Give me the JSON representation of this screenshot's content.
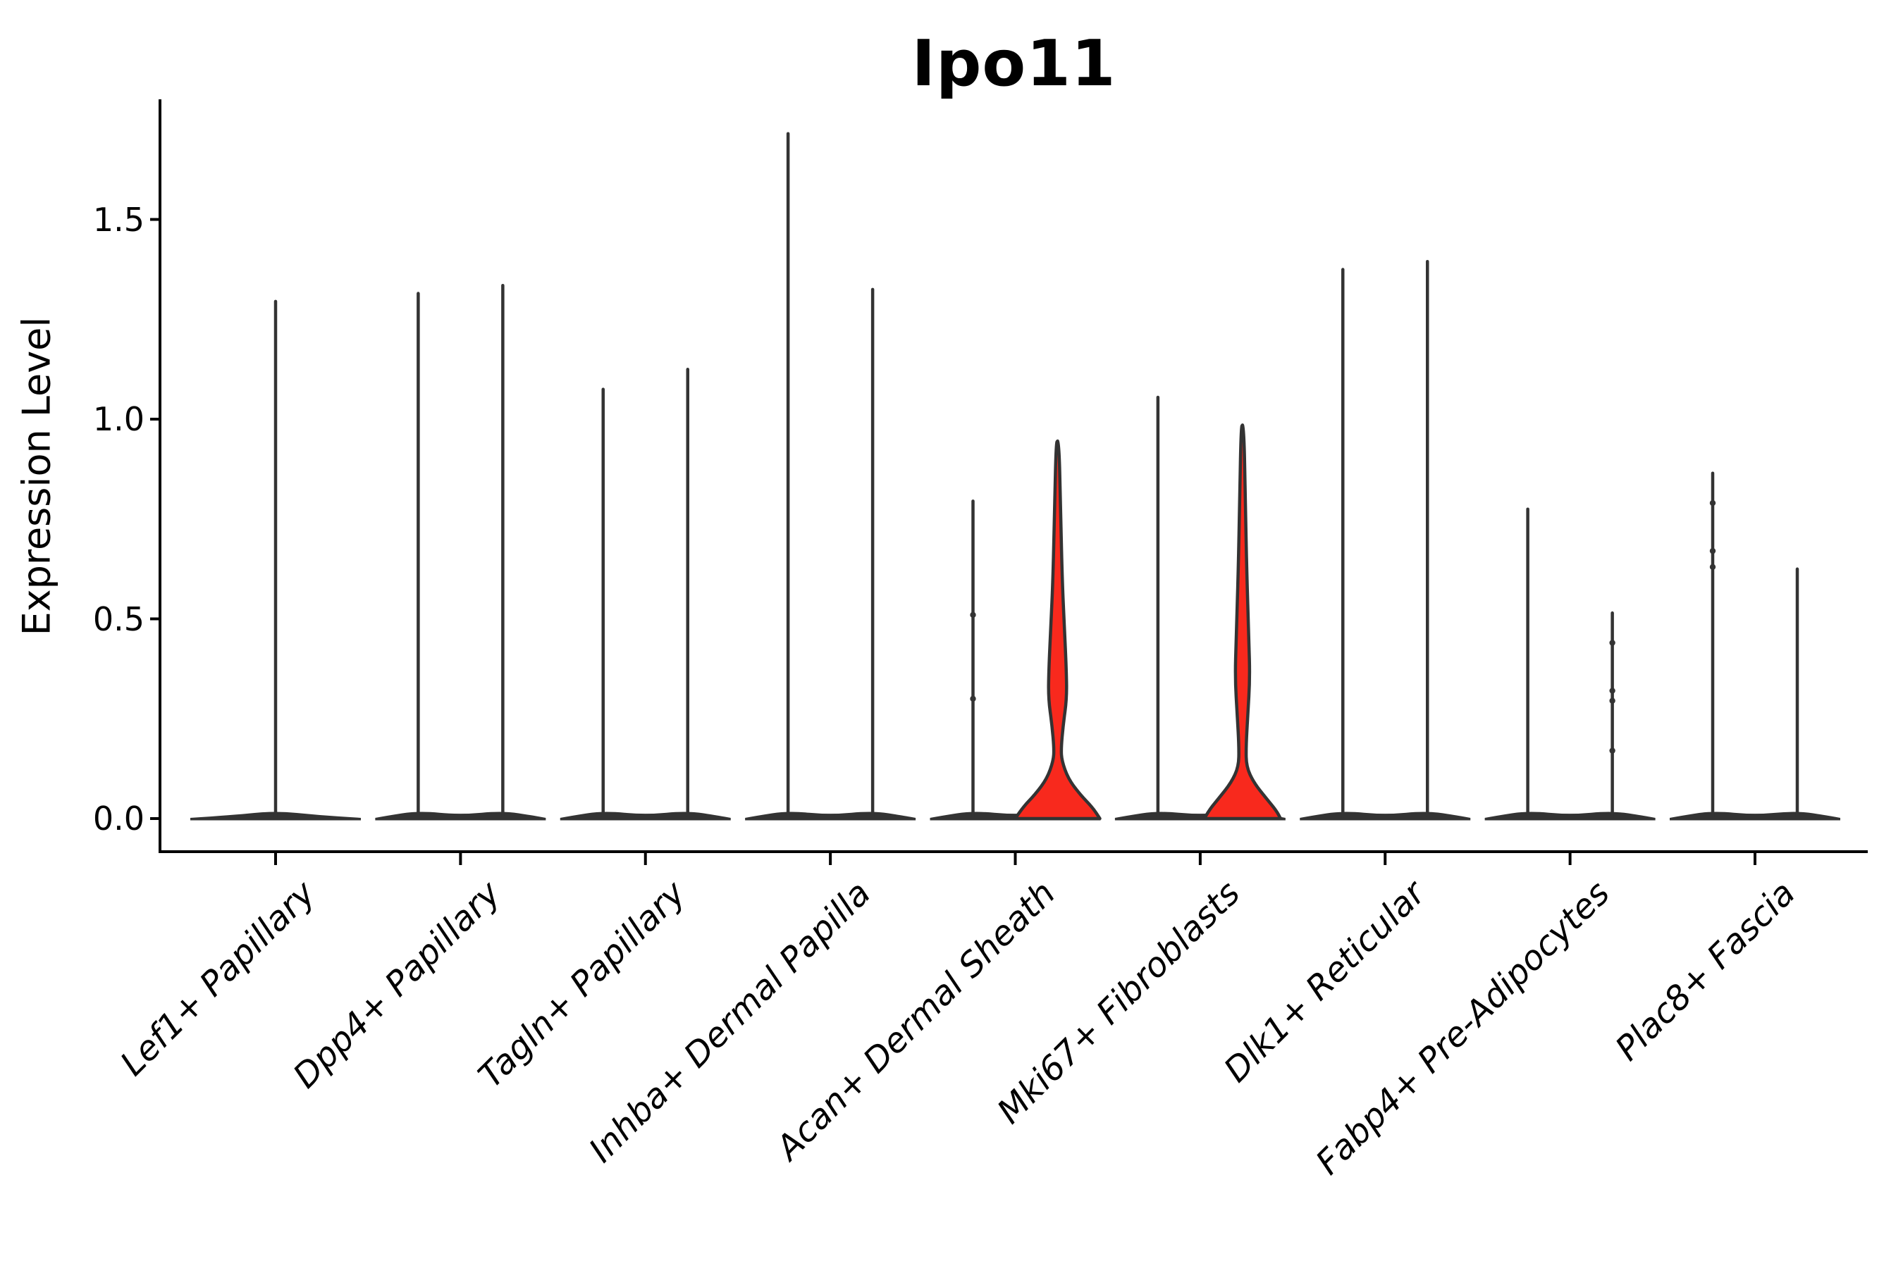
{
  "title": "Ipo11",
  "axis": {
    "ylabel": "Expression Level",
    "y_tick_labels": [
      "0.0",
      "0.5",
      "1.0",
      "1.5"
    ]
  },
  "colors": {
    "highlight_fill": "#F8291D",
    "violin_ink": "#333333",
    "axis_ink": "#000000",
    "background": "#FFFFFF"
  },
  "chart_data": {
    "type": "violin",
    "title": "Ipo11",
    "xlabel": "",
    "ylabel": "Expression Level",
    "ylim": [
      -0.08,
      1.8
    ],
    "yticks": [
      0,
      0.5,
      1,
      1.5
    ],
    "grid": "off",
    "legend": "none",
    "categories": [
      "Lef1+ Papillary",
      "Dpp4+ Papillary",
      "Tagln+ Papillary",
      "Inhba+ Dermal Papilla",
      "Acan+ Dermal Sheath",
      "Mki67+ Fibroblasts",
      "Dlk1+ Reticular",
      "Fabp4+ Pre-Adipocytes",
      "Plac8+ Fascia"
    ],
    "violins": [
      {
        "category": "Lef1+ Papillary",
        "slot": "center",
        "max_expression": 1.3,
        "style": "spike"
      },
      {
        "category": "Dpp4+ Papillary",
        "slot": "left",
        "max_expression": 1.32,
        "style": "spike"
      },
      {
        "category": "Dpp4+ Papillary",
        "slot": "right",
        "max_expression": 1.34,
        "style": "spike"
      },
      {
        "category": "Tagln+ Papillary",
        "slot": "left",
        "max_expression": 1.08,
        "style": "spike"
      },
      {
        "category": "Tagln+ Papillary",
        "slot": "right",
        "max_expression": 1.13,
        "style": "spike"
      },
      {
        "category": "Inhba+ Dermal Papilla",
        "slot": "left",
        "max_expression": 1.72,
        "style": "spike"
      },
      {
        "category": "Inhba+ Dermal Papilla",
        "slot": "right",
        "max_expression": 1.33,
        "style": "spike"
      },
      {
        "category": "Acan+ Dermal Sheath",
        "slot": "left",
        "max_expression": 0.8,
        "style": "spike",
        "nubs": [
          0.51,
          0.3
        ]
      },
      {
        "category": "Acan+ Dermal Sheath",
        "slot": "right",
        "max_expression": 0.94,
        "style": "body",
        "fill": "highlight",
        "profile": [
          [
            0.94,
            2
          ],
          [
            0.8,
            4
          ],
          [
            0.6,
            6.5
          ],
          [
            0.485,
            9.5
          ],
          [
            0.37,
            12.5
          ],
          [
            0.3,
            13
          ],
          [
            0.235,
            8
          ],
          [
            0.175,
            5
          ],
          [
            0.145,
            6
          ],
          [
            0.1,
            15
          ],
          [
            0.06,
            32
          ],
          [
            0.027,
            50
          ],
          [
            0.0,
            60
          ]
        ]
      },
      {
        "category": "Mki67+ Fibroblasts",
        "slot": "left",
        "max_expression": 1.06,
        "style": "spike"
      },
      {
        "category": "Mki67+ Fibroblasts",
        "slot": "right",
        "max_expression": 0.98,
        "style": "body",
        "fill": "highlight",
        "profile": [
          [
            0.98,
            2
          ],
          [
            0.8,
            4
          ],
          [
            0.62,
            6
          ],
          [
            0.45,
            9
          ],
          [
            0.35,
            10.5
          ],
          [
            0.26,
            7.5
          ],
          [
            0.18,
            5
          ],
          [
            0.13,
            5.5
          ],
          [
            0.09,
            16
          ],
          [
            0.05,
            34
          ],
          [
            0.02,
            48
          ],
          [
            0.0,
            54
          ]
        ]
      },
      {
        "category": "Dlk1+ Reticular",
        "slot": "left",
        "max_expression": 1.38,
        "style": "spike"
      },
      {
        "category": "Dlk1+ Reticular",
        "slot": "right",
        "max_expression": 1.4,
        "style": "spike"
      },
      {
        "category": "Fabp4+ Pre-Adipocytes",
        "slot": "left",
        "max_expression": 0.78,
        "style": "spike"
      },
      {
        "category": "Fabp4+ Pre-Adipocytes",
        "slot": "right",
        "max_expression": 0.52,
        "style": "spike",
        "nubs": [
          0.44,
          0.32,
          0.295,
          0.17
        ]
      },
      {
        "category": "Plac8+ Fascia",
        "slot": "left",
        "max_expression": 0.87,
        "style": "spike",
        "nubs": [
          0.79,
          0.67,
          0.63
        ]
      },
      {
        "category": "Plac8+ Fascia",
        "slot": "right",
        "max_expression": 0.63,
        "style": "spike"
      }
    ]
  }
}
